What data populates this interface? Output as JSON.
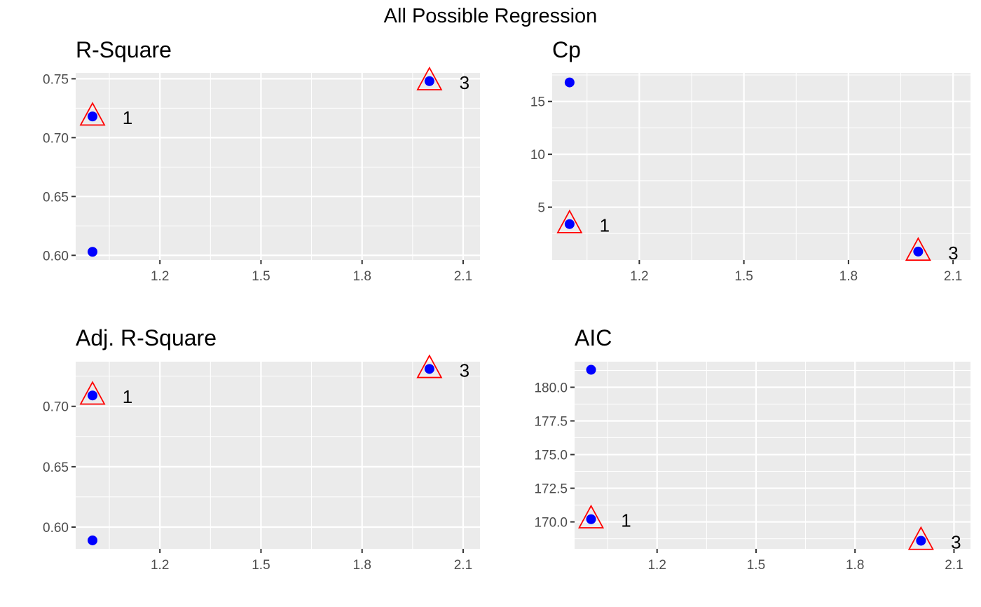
{
  "figure": {
    "title": "All Possible Regression"
  },
  "chart_data": [
    {
      "type": "scatter",
      "title": "R-Square",
      "xlabel": "",
      "ylabel": "",
      "xlim": [
        0.95,
        2.15
      ],
      "ylim": [
        0.596,
        0.755
      ],
      "x_ticks": [
        1.2,
        1.5,
        1.8,
        2.1
      ],
      "y_ticks": [
        0.6,
        0.65,
        0.7,
        0.75
      ],
      "x_tick_labels": [
        "1.2",
        "1.5",
        "1.8",
        "2.1"
      ],
      "y_tick_labels": [
        "0.60",
        "0.65",
        "0.70",
        "0.75"
      ],
      "grid": true,
      "points": [
        {
          "x": 1,
          "y": 0.603
        },
        {
          "x": 1,
          "y": 0.718
        },
        {
          "x": 2,
          "y": 0.748
        }
      ],
      "highlight": [
        {
          "x": 1,
          "y": 0.718,
          "label": "1"
        },
        {
          "x": 2,
          "y": 0.748,
          "label": "3"
        }
      ]
    },
    {
      "type": "scatter",
      "title": "Cp",
      "xlabel": "",
      "ylabel": "",
      "xlim": [
        0.95,
        2.15
      ],
      "ylim": [
        0.0,
        17.7
      ],
      "x_ticks": [
        1.2,
        1.5,
        1.8,
        2.1
      ],
      "y_ticks": [
        5,
        10,
        15
      ],
      "x_tick_labels": [
        "1.2",
        "1.5",
        "1.8",
        "2.1"
      ],
      "y_tick_labels": [
        "5",
        "10",
        "15"
      ],
      "grid": true,
      "points": [
        {
          "x": 1,
          "y": 16.8
        },
        {
          "x": 1,
          "y": 3.4
        },
        {
          "x": 2,
          "y": 0.8
        }
      ],
      "highlight": [
        {
          "x": 1,
          "y": 3.4,
          "label": "1"
        },
        {
          "x": 2,
          "y": 0.8,
          "label": "3"
        }
      ]
    },
    {
      "type": "scatter",
      "title": "Adj. R-Square",
      "xlabel": "",
      "ylabel": "",
      "xlim": [
        0.95,
        2.15
      ],
      "ylim": [
        0.582,
        0.737
      ],
      "x_ticks": [
        1.2,
        1.5,
        1.8,
        2.1
      ],
      "y_ticks": [
        0.6,
        0.65,
        0.7
      ],
      "x_tick_labels": [
        "1.2",
        "1.5",
        "1.8",
        "2.1"
      ],
      "y_tick_labels": [
        "0.60",
        "0.65",
        "0.70"
      ],
      "grid": true,
      "points": [
        {
          "x": 1,
          "y": 0.589
        },
        {
          "x": 1,
          "y": 0.709
        },
        {
          "x": 2,
          "y": 0.731
        }
      ],
      "highlight": [
        {
          "x": 1,
          "y": 0.709,
          "label": "1"
        },
        {
          "x": 2,
          "y": 0.731,
          "label": "3"
        }
      ]
    },
    {
      "type": "scatter",
      "title": "AIC",
      "xlabel": "",
      "ylabel": "",
      "xlim": [
        0.95,
        2.15
      ],
      "ylim": [
        168.0,
        181.9
      ],
      "x_ticks": [
        1.2,
        1.5,
        1.8,
        2.1
      ],
      "y_ticks": [
        170.0,
        172.5,
        175.0,
        177.5,
        180.0
      ],
      "x_tick_labels": [
        "1.2",
        "1.5",
        "1.8",
        "2.1"
      ],
      "y_tick_labels": [
        "170.0",
        "172.5",
        "175.0",
        "177.5",
        "180.0"
      ],
      "grid": true,
      "points": [
        {
          "x": 1,
          "y": 181.3
        },
        {
          "x": 1,
          "y": 170.2
        },
        {
          "x": 2,
          "y": 168.6
        }
      ],
      "highlight": [
        {
          "x": 1,
          "y": 170.2,
          "label": "1"
        },
        {
          "x": 2,
          "y": 168.6,
          "label": "3"
        }
      ]
    }
  ],
  "colors": {
    "panel_background": "#ebebeb",
    "grid": "#ffffff",
    "point": "#0000ff",
    "highlight": "#ff0000",
    "tick_text": "#4d4d4d",
    "axis_tick": "#333333"
  }
}
